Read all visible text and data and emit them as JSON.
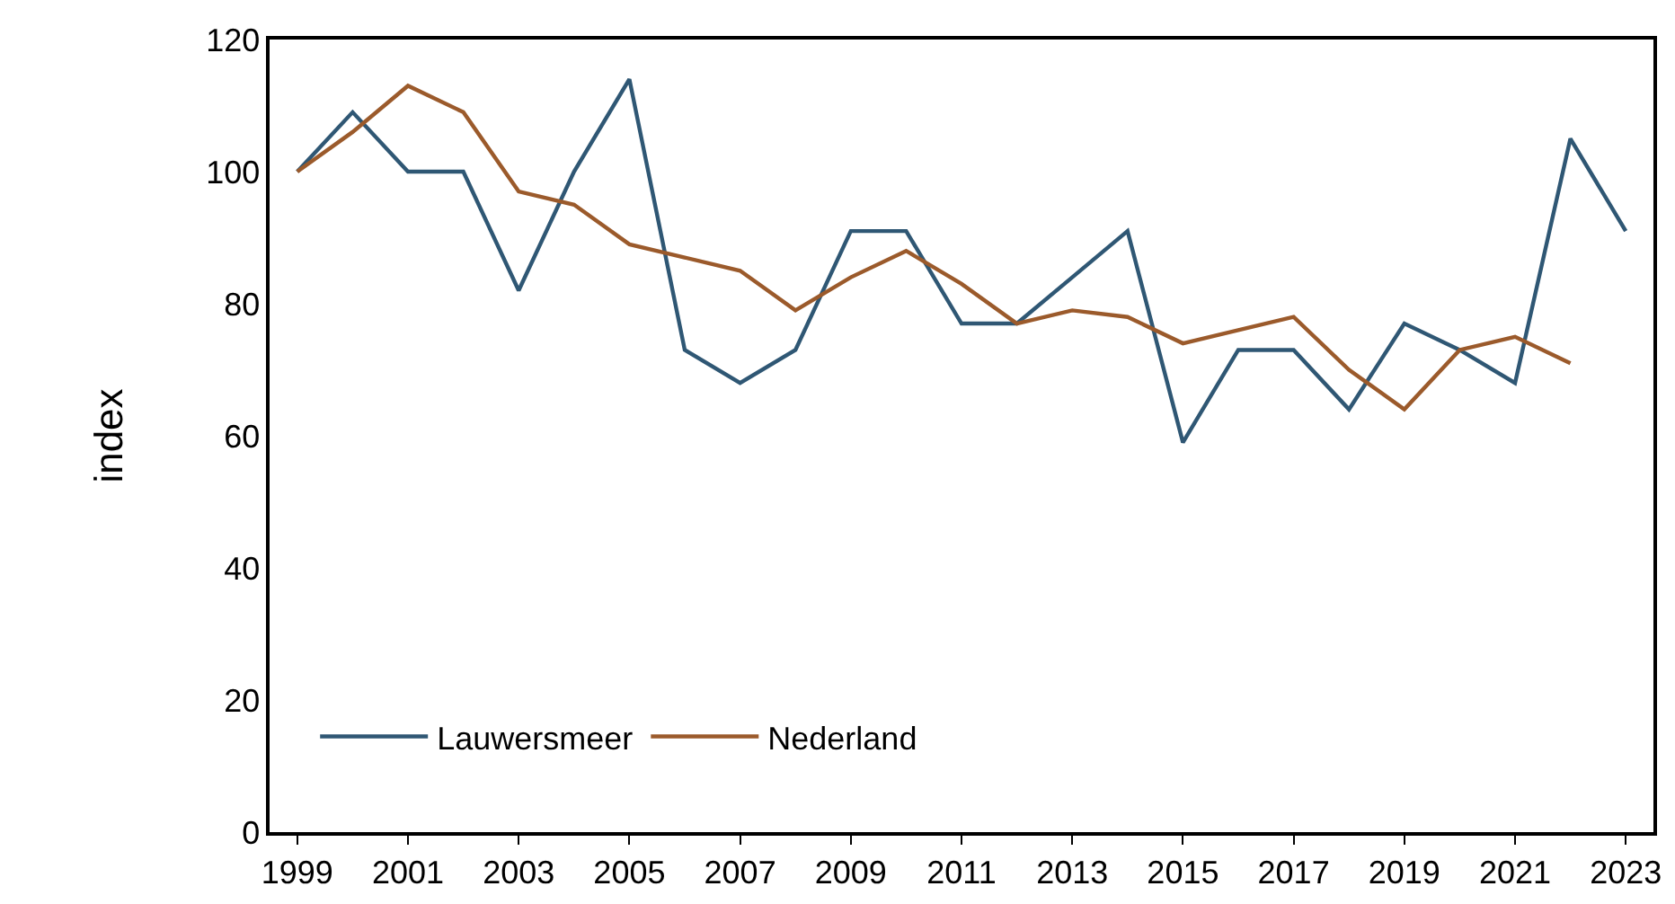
{
  "chart_data": {
    "type": "line",
    "ylabel": "index",
    "x": [
      1999,
      2000,
      2001,
      2002,
      2003,
      2004,
      2005,
      2006,
      2007,
      2008,
      2009,
      2010,
      2011,
      2012,
      2013,
      2014,
      2015,
      2016,
      2017,
      2018,
      2019,
      2020,
      2021,
      2022,
      2023
    ],
    "series": [
      {
        "name": "Lauwersmeer",
        "color": "#2f5774",
        "values": [
          100,
          109,
          100,
          100,
          82,
          100,
          114,
          73,
          68,
          73,
          91,
          91,
          77,
          77,
          84,
          91,
          59,
          73,
          73,
          64,
          77,
          73,
          68,
          105,
          91
        ]
      },
      {
        "name": "Nederland",
        "color": "#9b5a2b",
        "values": [
          100,
          106,
          113,
          109,
          97,
          95,
          89,
          87,
          85,
          79,
          84,
          88,
          83,
          77,
          79,
          78,
          74,
          76,
          78,
          70,
          64,
          73,
          75,
          71,
          null
        ]
      }
    ],
    "xlim": [
      1998.5,
      2023.5
    ],
    "xticks": [
      1999,
      2001,
      2003,
      2005,
      2007,
      2009,
      2011,
      2013,
      2015,
      2017,
      2019,
      2021,
      2023
    ],
    "ylim": [
      0,
      120
    ],
    "yticks": [
      0,
      20,
      40,
      60,
      80,
      100,
      120
    ],
    "grid": false,
    "legend": "bottom left",
    "marker": "none",
    "line_style": "solid"
  }
}
